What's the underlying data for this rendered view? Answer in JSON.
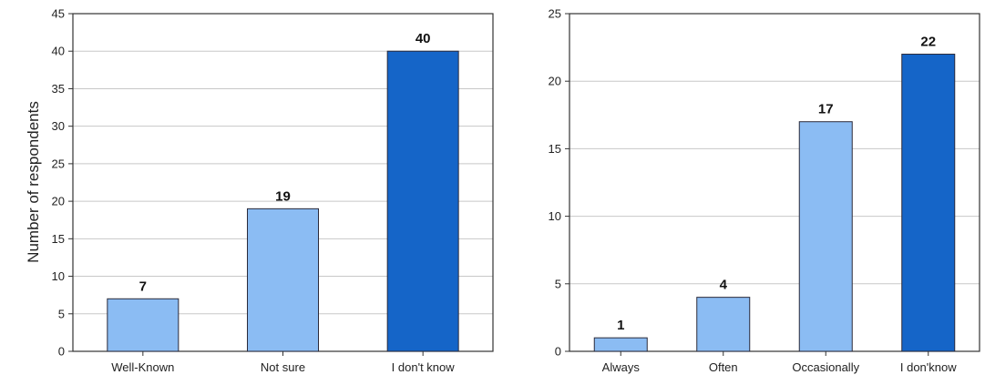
{
  "chart_data": [
    {
      "type": "bar",
      "title": "",
      "xlabel": "",
      "ylabel": "Number of respondents",
      "ylim": [
        0,
        45
      ],
      "yticks": [
        0,
        5,
        10,
        15,
        20,
        25,
        30,
        35,
        40,
        45
      ],
      "grid": true,
      "categories": [
        "Well-Known",
        "Not sure",
        "I don't know"
      ],
      "values": [
        7,
        19,
        40
      ],
      "data_labels": [
        "7",
        "19",
        "40"
      ],
      "bar_colors": [
        "#8bbcf3",
        "#8bbcf3",
        "#1565c8"
      ]
    },
    {
      "type": "bar",
      "title": "",
      "xlabel": "",
      "ylabel": "",
      "ylim": [
        0,
        25
      ],
      "yticks": [
        0,
        5,
        10,
        15,
        20,
        25
      ],
      "grid": true,
      "categories": [
        "Always",
        "Often",
        "Occasionally",
        "I don'know"
      ],
      "values": [
        1,
        4,
        17,
        22
      ],
      "data_labels": [
        "1",
        "4",
        "17",
        "22"
      ],
      "bar_colors": [
        "#8bbcf3",
        "#8bbcf3",
        "#8bbcf3",
        "#1565c8"
      ]
    }
  ]
}
